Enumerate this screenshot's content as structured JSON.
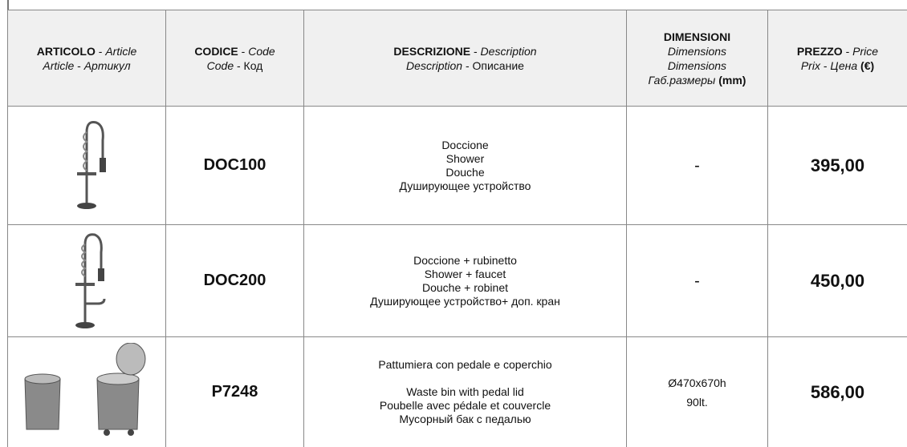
{
  "table": {
    "header": [
      [
        [
          {
            "text": "ARTICOLO",
            "style": "bold"
          },
          {
            "text": " - ",
            "style": "normal"
          },
          {
            "text": "Article",
            "style": "italic"
          }
        ],
        [
          {
            "text": "Article",
            "style": "italic"
          },
          {
            "text": " - ",
            "style": "normal"
          },
          {
            "text": "Артикул",
            "style": "italic"
          }
        ]
      ],
      [
        [
          {
            "text": "CODICE",
            "style": "bold"
          },
          {
            "text": " - ",
            "style": "normal"
          },
          {
            "text": "Code",
            "style": "italic"
          }
        ],
        [
          {
            "text": "Code",
            "style": "italic"
          },
          {
            "text": " - Код",
            "style": "normal"
          }
        ]
      ],
      [
        [
          {
            "text": "DESCRIZIONE",
            "style": "bold"
          },
          {
            "text": " - ",
            "style": "normal"
          },
          {
            "text": "Description",
            "style": "italic"
          }
        ],
        [
          {
            "text": "Description",
            "style": "italic"
          },
          {
            "text": " - Описание",
            "style": "normal"
          }
        ]
      ],
      [
        [
          {
            "text": "DIMENSIONI",
            "style": "bold"
          }
        ],
        [
          {
            "text": "Dimensions",
            "style": "italic"
          }
        ],
        [
          {
            "text": "Dimensions",
            "style": "italic"
          }
        ],
        [
          {
            "text": "Габ.размеры",
            "style": "italic"
          },
          {
            "text": " (mm)",
            "style": "bold"
          }
        ]
      ],
      [
        [
          {
            "text": "PREZZO",
            "style": "bold"
          },
          {
            "text": " - ",
            "style": "normal"
          },
          {
            "text": "Price",
            "style": "italic"
          }
        ],
        [
          {
            "text": "Prix",
            "style": "italic"
          },
          {
            "text": " - ",
            "style": "normal"
          },
          {
            "text": "Цена",
            "style": "italic"
          },
          {
            "text": " (€)",
            "style": "bold"
          }
        ]
      ]
    ],
    "rows": [
      {
        "code": "DOC100",
        "description": [
          [
            "Doccione",
            "Shower",
            "Douche",
            "Душирующее устройство"
          ]
        ],
        "dimensions": [
          "-"
        ],
        "price": "395,00"
      },
      {
        "code": "DOC200",
        "description": [
          [
            "Doccione + rubinetto",
            "Shower + faucet",
            "Douche + robinet",
            "Душирующее устройство+ доп. кран"
          ]
        ],
        "dimensions": [
          "-"
        ],
        "price": "450,00"
      },
      {
        "code": "P7248",
        "description": [
          [
            "Pattumiera con pedale e coperchio"
          ],
          [
            "Waste bin with pedal lid",
            "Poubelle avec pédale et couvercle",
            "Мусорный бак с педалью"
          ]
        ],
        "dimensions": [
          "Ø470x670h",
          "90lt."
        ],
        "price": "586,00"
      }
    ]
  }
}
